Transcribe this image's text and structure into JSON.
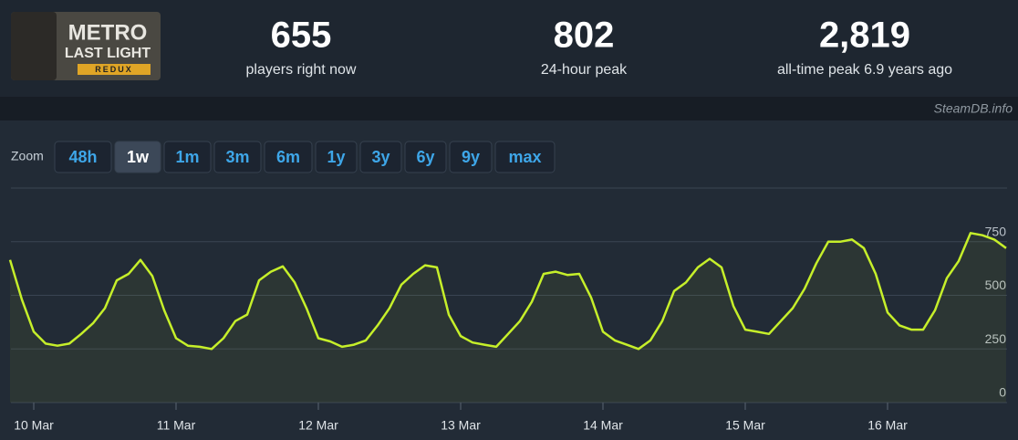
{
  "header": {
    "logo": {
      "line1": "METRO",
      "line2": "LAST LIGHT",
      "line3": "REDUX"
    },
    "stats": [
      {
        "value": "655",
        "label": "players right now"
      },
      {
        "value": "802",
        "label": "24-hour peak"
      },
      {
        "value": "2,819",
        "label": "all-time peak 6.9 years ago"
      }
    ]
  },
  "watermark": "SteamDB.info",
  "zoom": {
    "label": "Zoom",
    "options": [
      "48h",
      "1w",
      "1m",
      "3m",
      "6m",
      "1y",
      "3y",
      "6y",
      "9y",
      "max"
    ],
    "active": 1
  },
  "chart_data": {
    "type": "line",
    "categories": [
      null,
      null,
      "10 Mar",
      null,
      null,
      null,
      null,
      null,
      null,
      null,
      null,
      null,
      null,
      null,
      "11 Mar",
      null,
      null,
      null,
      null,
      null,
      null,
      null,
      null,
      null,
      null,
      null,
      "12 Mar",
      null,
      null,
      null,
      null,
      null,
      null,
      null,
      null,
      null,
      null,
      null,
      "13 Mar",
      null,
      null,
      null,
      null,
      null,
      null,
      null,
      null,
      null,
      null,
      null,
      "14 Mar",
      null,
      null,
      null,
      null,
      null,
      null,
      null,
      null,
      null,
      null,
      null,
      "15 Mar",
      null,
      null,
      null,
      null,
      null,
      null,
      null,
      null,
      null,
      null,
      null,
      "16 Mar",
      null,
      null,
      null,
      null,
      null,
      null,
      null,
      null,
      null,
      null
    ],
    "series": [
      {
        "color": "#c6ef2a",
        "values": [
          665,
          480,
          330,
          275,
          265,
          275,
          320,
          370,
          440,
          570,
          600,
          665,
          590,
          430,
          300,
          265,
          260,
          250,
          300,
          380,
          410,
          570,
          610,
          635,
          560,
          440,
          300,
          285,
          260,
          270,
          290,
          360,
          440,
          550,
          600,
          640,
          630,
          410,
          310,
          280,
          270,
          260,
          320,
          380,
          470,
          600,
          610,
          595,
          600,
          490,
          330,
          290,
          270,
          250,
          290,
          380,
          520,
          560,
          630,
          670,
          630,
          450,
          340,
          330,
          320,
          380,
          440,
          530,
          650,
          750,
          750,
          760,
          720,
          600,
          420,
          360,
          340,
          340,
          430,
          580,
          660,
          790,
          780,
          760,
          720
        ]
      }
    ],
    "ylim": [
      0,
      1000
    ],
    "yticks": [
      0,
      250,
      500,
      750
    ],
    "grid": true
  }
}
